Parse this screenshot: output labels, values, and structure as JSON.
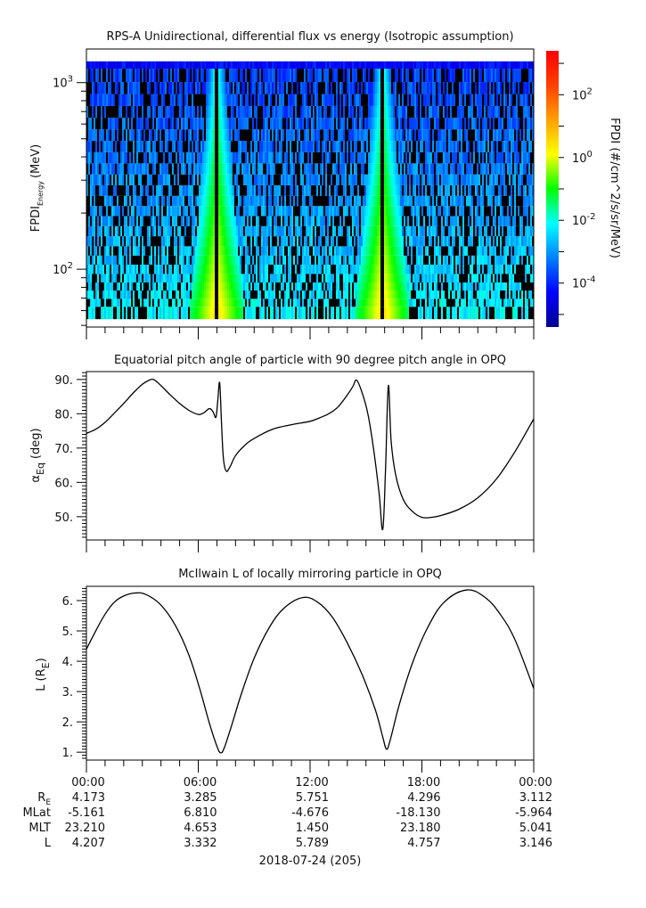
{
  "chart_data": [
    {
      "type": "heatmap",
      "title": "RPS-A Unidirectional, differential flux vs energy (Isotropic assumption)",
      "ylabel": "FPDI",
      "ylabel_sub": "Energy",
      "ylabel_unit": "(MeV)",
      "yscale": "log",
      "ylim": [
        49,
        1514
      ],
      "y_ticks": [
        {
          "value": 1000,
          "base": "10",
          "exp": "3"
        },
        {
          "value": 100,
          "base": "10",
          "exp": "2"
        }
      ],
      "xlim_hours": [
        0,
        24
      ],
      "energy_bins_mev": [
        60,
        66,
        73,
        81,
        89,
        100,
        112,
        125,
        141,
        160,
        181,
        205,
        232,
        264,
        301,
        345,
        395,
        454,
        523,
        603,
        697,
        806,
        935,
        1085,
        1300
      ],
      "features": [
        {
          "name": "enhancement band 1",
          "center_hour": 7.0,
          "peak_log_flux": 0.5
        },
        {
          "name": "enhancement band 2",
          "center_hour": 15.9,
          "peak_log_flux": 0.5
        }
      ],
      "background_log_flux_low_energy": -2.2,
      "background_log_flux_high_energy": -3.8,
      "colorbar": {
        "label": "FPDI (#/cm^2/s/sr/MeV)",
        "scale": "log",
        "range_log": [
          -5.4,
          3.4
        ],
        "ticks": [
          {
            "base": "10",
            "exp": "2",
            "log": 2
          },
          {
            "base": "10",
            "exp": "0",
            "log": 0
          },
          {
            "base": "10",
            "exp": "-2",
            "log": -2
          },
          {
            "base": "10",
            "exp": "-4",
            "log": -4
          }
        ]
      }
    },
    {
      "type": "line",
      "title": "Equatorial pitch angle of particle with 90 degree pitch angle in OPQ",
      "ylabel": "α",
      "ylabel_sub": "Eq",
      "ylabel_unit": "(deg)",
      "ylim": [
        43.2,
        92.3
      ],
      "y_ticks": [
        "90.",
        "80.",
        "70.",
        "60.",
        "50."
      ],
      "y_tick_values": [
        90,
        80,
        70,
        60,
        50
      ],
      "series": [
        {
          "name": "alpha_eq",
          "x_hours": [
            0,
            0.5,
            1,
            1.5,
            2,
            2.5,
            3,
            3.3,
            3.6,
            4,
            4.5,
            5,
            5.5,
            6,
            6.3,
            6.6,
            6.8,
            6.95,
            7.05,
            7.15,
            7.25,
            7.35,
            7.5,
            7.7,
            8,
            8.5,
            9,
            10,
            11,
            12,
            12.5,
            13,
            13.5,
            14,
            14.3,
            14.5,
            14.8,
            15.1,
            15.4,
            15.7,
            15.9,
            16.05,
            16.2,
            16.35,
            16.6,
            17,
            17.5,
            18,
            18.5,
            19,
            20,
            21,
            22,
            23,
            24
          ],
          "y": [
            74.3,
            75.5,
            77.5,
            80.2,
            83,
            86,
            88.6,
            89.6,
            90,
            88.2,
            85.5,
            83,
            81,
            79.8,
            80.3,
            81.5,
            80.5,
            79,
            84,
            89,
            77,
            67,
            63.3,
            64.5,
            67.8,
            70.8,
            72.8,
            75.5,
            76.8,
            77.8,
            78.8,
            80,
            82,
            85.5,
            88,
            89.8,
            86,
            80,
            70,
            57,
            46.3,
            64,
            88.2,
            72,
            62,
            55,
            51.5,
            49.8,
            49.8,
            50.3,
            52.2,
            55.5,
            61,
            69,
            78.5
          ]
        }
      ]
    },
    {
      "type": "line",
      "title": "McIlwain L of locally mirroring particle in OPQ",
      "ylabel": "L",
      "ylabel_unit": "(R",
      "ylabel_unit_sub": "E",
      "ylabel_unit_close": ")",
      "ylim": [
        0.74,
        6.47
      ],
      "y_ticks": [
        "6.",
        "5.",
        "4.",
        "3.",
        "2.",
        "1."
      ],
      "y_tick_values": [
        6,
        5,
        4,
        3,
        2,
        1
      ],
      "series": [
        {
          "name": "L",
          "x_hours": [
            0,
            0.5,
            1,
            1.5,
            2,
            2.6,
            3.2,
            4,
            4.8,
            5.5,
            6.1,
            6.6,
            7.0,
            7.2,
            7.4,
            7.8,
            8.3,
            9,
            9.8,
            10.6,
            11.6,
            12.4,
            13.2,
            14,
            14.8,
            15.5,
            15.9,
            16.1,
            16.3,
            16.8,
            17.5,
            18.3,
            19.2,
            20.4,
            21.4,
            22.2,
            23,
            24
          ],
          "y": [
            4.4,
            5.0,
            5.55,
            5.95,
            6.15,
            6.25,
            6.2,
            5.85,
            5.15,
            4.2,
            3.05,
            1.95,
            1.2,
            0.98,
            1.15,
            1.9,
            2.9,
            4.1,
            5.1,
            5.75,
            6.1,
            5.95,
            5.45,
            4.6,
            3.55,
            2.4,
            1.5,
            1.1,
            1.4,
            2.6,
            3.95,
            5.1,
            5.95,
            6.35,
            6.1,
            5.55,
            4.7,
            3.1
          ]
        }
      ]
    }
  ],
  "x_axis": {
    "tick_labels": [
      "00:00",
      "06:00",
      "12:00",
      "18:00",
      "00:00"
    ],
    "tick_hours": [
      0,
      6,
      12,
      18,
      24
    ],
    "date_label": "2018-07-24 (205)"
  },
  "ephemeris": {
    "rows": [
      {
        "label": "R",
        "label_sub": "E",
        "values": [
          "4.173",
          "3.285",
          "5.751",
          "4.296",
          "3.112"
        ]
      },
      {
        "label": "MLat",
        "label_sub": "",
        "values": [
          "-5.161",
          "6.810",
          "-4.676",
          "-18.130",
          "-5.964"
        ]
      },
      {
        "label": "MLT",
        "label_sub": "",
        "values": [
          "23.210",
          "4.653",
          "1.450",
          "23.180",
          "5.041"
        ]
      },
      {
        "label": "L",
        "label_sub": "",
        "values": [
          "4.207",
          "3.332",
          "5.789",
          "4.757",
          "3.146"
        ]
      }
    ]
  }
}
